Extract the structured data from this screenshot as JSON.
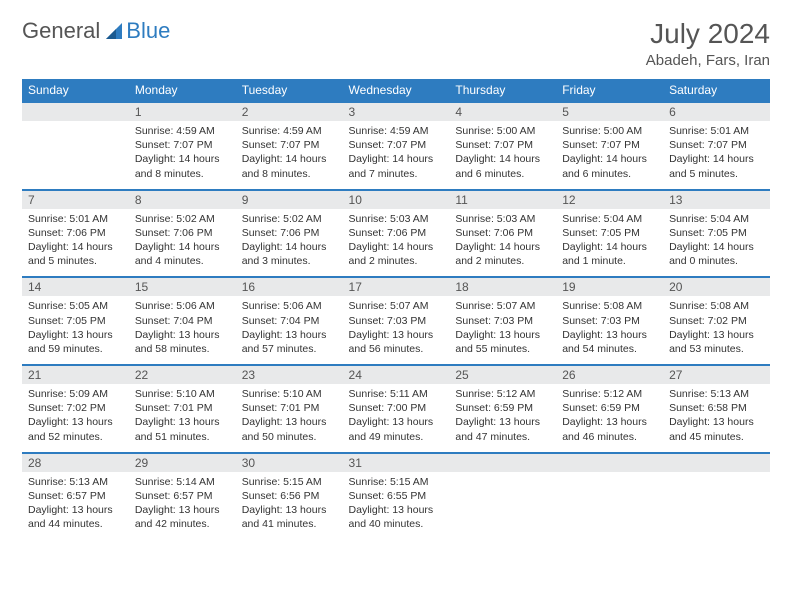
{
  "logo": {
    "text1": "General",
    "text2": "Blue"
  },
  "header": {
    "month": "July 2024",
    "location": "Abadeh, Fars, Iran"
  },
  "colors": {
    "accent": "#2e7cc0",
    "dayHeaderBg": "#e8e9ea",
    "text": "#333333"
  },
  "dayNames": [
    "Sunday",
    "Monday",
    "Tuesday",
    "Wednesday",
    "Thursday",
    "Friday",
    "Saturday"
  ],
  "weeks": [
    [
      null,
      {
        "n": "1",
        "sr": "4:59 AM",
        "ss": "7:07 PM",
        "dl": "14 hours and 8 minutes."
      },
      {
        "n": "2",
        "sr": "4:59 AM",
        "ss": "7:07 PM",
        "dl": "14 hours and 8 minutes."
      },
      {
        "n": "3",
        "sr": "4:59 AM",
        "ss": "7:07 PM",
        "dl": "14 hours and 7 minutes."
      },
      {
        "n": "4",
        "sr": "5:00 AM",
        "ss": "7:07 PM",
        "dl": "14 hours and 6 minutes."
      },
      {
        "n": "5",
        "sr": "5:00 AM",
        "ss": "7:07 PM",
        "dl": "14 hours and 6 minutes."
      },
      {
        "n": "6",
        "sr": "5:01 AM",
        "ss": "7:07 PM",
        "dl": "14 hours and 5 minutes."
      }
    ],
    [
      {
        "n": "7",
        "sr": "5:01 AM",
        "ss": "7:06 PM",
        "dl": "14 hours and 5 minutes."
      },
      {
        "n": "8",
        "sr": "5:02 AM",
        "ss": "7:06 PM",
        "dl": "14 hours and 4 minutes."
      },
      {
        "n": "9",
        "sr": "5:02 AM",
        "ss": "7:06 PM",
        "dl": "14 hours and 3 minutes."
      },
      {
        "n": "10",
        "sr": "5:03 AM",
        "ss": "7:06 PM",
        "dl": "14 hours and 2 minutes."
      },
      {
        "n": "11",
        "sr": "5:03 AM",
        "ss": "7:06 PM",
        "dl": "14 hours and 2 minutes."
      },
      {
        "n": "12",
        "sr": "5:04 AM",
        "ss": "7:05 PM",
        "dl": "14 hours and 1 minute."
      },
      {
        "n": "13",
        "sr": "5:04 AM",
        "ss": "7:05 PM",
        "dl": "14 hours and 0 minutes."
      }
    ],
    [
      {
        "n": "14",
        "sr": "5:05 AM",
        "ss": "7:05 PM",
        "dl": "13 hours and 59 minutes."
      },
      {
        "n": "15",
        "sr": "5:06 AM",
        "ss": "7:04 PM",
        "dl": "13 hours and 58 minutes."
      },
      {
        "n": "16",
        "sr": "5:06 AM",
        "ss": "7:04 PM",
        "dl": "13 hours and 57 minutes."
      },
      {
        "n": "17",
        "sr": "5:07 AM",
        "ss": "7:03 PM",
        "dl": "13 hours and 56 minutes."
      },
      {
        "n": "18",
        "sr": "5:07 AM",
        "ss": "7:03 PM",
        "dl": "13 hours and 55 minutes."
      },
      {
        "n": "19",
        "sr": "5:08 AM",
        "ss": "7:03 PM",
        "dl": "13 hours and 54 minutes."
      },
      {
        "n": "20",
        "sr": "5:08 AM",
        "ss": "7:02 PM",
        "dl": "13 hours and 53 minutes."
      }
    ],
    [
      {
        "n": "21",
        "sr": "5:09 AM",
        "ss": "7:02 PM",
        "dl": "13 hours and 52 minutes."
      },
      {
        "n": "22",
        "sr": "5:10 AM",
        "ss": "7:01 PM",
        "dl": "13 hours and 51 minutes."
      },
      {
        "n": "23",
        "sr": "5:10 AM",
        "ss": "7:01 PM",
        "dl": "13 hours and 50 minutes."
      },
      {
        "n": "24",
        "sr": "5:11 AM",
        "ss": "7:00 PM",
        "dl": "13 hours and 49 minutes."
      },
      {
        "n": "25",
        "sr": "5:12 AM",
        "ss": "6:59 PM",
        "dl": "13 hours and 47 minutes."
      },
      {
        "n": "26",
        "sr": "5:12 AM",
        "ss": "6:59 PM",
        "dl": "13 hours and 46 minutes."
      },
      {
        "n": "27",
        "sr": "5:13 AM",
        "ss": "6:58 PM",
        "dl": "13 hours and 45 minutes."
      }
    ],
    [
      {
        "n": "28",
        "sr": "5:13 AM",
        "ss": "6:57 PM",
        "dl": "13 hours and 44 minutes."
      },
      {
        "n": "29",
        "sr": "5:14 AM",
        "ss": "6:57 PM",
        "dl": "13 hours and 42 minutes."
      },
      {
        "n": "30",
        "sr": "5:15 AM",
        "ss": "6:56 PM",
        "dl": "13 hours and 41 minutes."
      },
      {
        "n": "31",
        "sr": "5:15 AM",
        "ss": "6:55 PM",
        "dl": "13 hours and 40 minutes."
      },
      null,
      null,
      null
    ]
  ],
  "labels": {
    "sunrise": "Sunrise:",
    "sunset": "Sunset:",
    "daylight": "Daylight:"
  }
}
